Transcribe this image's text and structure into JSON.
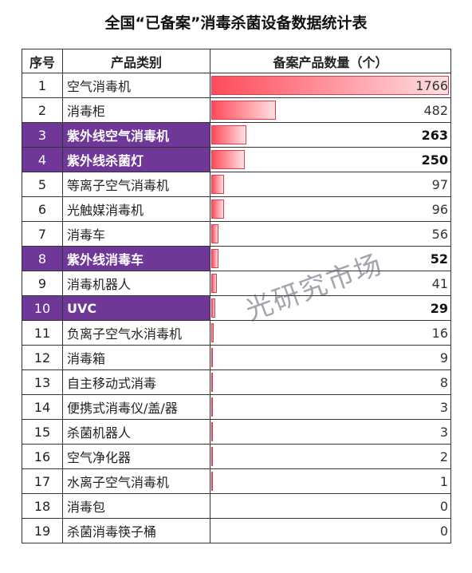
{
  "title": "全国“已备案”消毒杀菌设备数据统计表",
  "watermark": "光研究市场",
  "table": {
    "headers": [
      "序号",
      "产品类别",
      "备案产品数量（个）"
    ]
  },
  "colors": {
    "highlight": "#6f3798",
    "bar": "#ff4a5a"
  },
  "chart_data": {
    "type": "bar",
    "title": "全国“已备案”消毒杀菌设备数据统计表",
    "xlabel": "产品类别",
    "ylabel": "备案产品数量（个）",
    "ylim": [
      0,
      1766
    ],
    "rows": [
      {
        "idx": "1",
        "category": "空气消毒机",
        "value": 1766,
        "highlight": false
      },
      {
        "idx": "2",
        "category": "消毒柜",
        "value": 482,
        "highlight": false
      },
      {
        "idx": "3",
        "category": "紫外线空气消毒机",
        "value": 263,
        "highlight": true
      },
      {
        "idx": "4",
        "category": "紫外线杀菌灯",
        "value": 250,
        "highlight": true
      },
      {
        "idx": "5",
        "category": "等离子空气消毒机",
        "value": 97,
        "highlight": false
      },
      {
        "idx": "6",
        "category": "光触媒消毒机",
        "value": 96,
        "highlight": false
      },
      {
        "idx": "7",
        "category": "消毒车",
        "value": 56,
        "highlight": false
      },
      {
        "idx": "8",
        "category": "紫外线消毒车",
        "value": 52,
        "highlight": true
      },
      {
        "idx": "9",
        "category": "消毒机器人",
        "value": 41,
        "highlight": false
      },
      {
        "idx": "10",
        "category": "UVC",
        "value": 29,
        "highlight": true
      },
      {
        "idx": "11",
        "category": "负离子空气水消毒机",
        "value": 16,
        "highlight": false
      },
      {
        "idx": "12",
        "category": "消毒箱",
        "value": 9,
        "highlight": false
      },
      {
        "idx": "13",
        "category": "自主移动式消毒",
        "value": 8,
        "highlight": false
      },
      {
        "idx": "14",
        "category": "便携式消毒仪/盖/器",
        "value": 3,
        "highlight": false
      },
      {
        "idx": "15",
        "category": "杀菌机器人",
        "value": 3,
        "highlight": false
      },
      {
        "idx": "16",
        "category": "空气净化器",
        "value": 2,
        "highlight": false
      },
      {
        "idx": "17",
        "category": "水离子空气消毒机",
        "value": 1,
        "highlight": false
      },
      {
        "idx": "18",
        "category": "消毒包",
        "value": 0,
        "highlight": false
      },
      {
        "idx": "19",
        "category": "杀菌消毒筷子桶",
        "value": 0,
        "highlight": false
      }
    ]
  }
}
